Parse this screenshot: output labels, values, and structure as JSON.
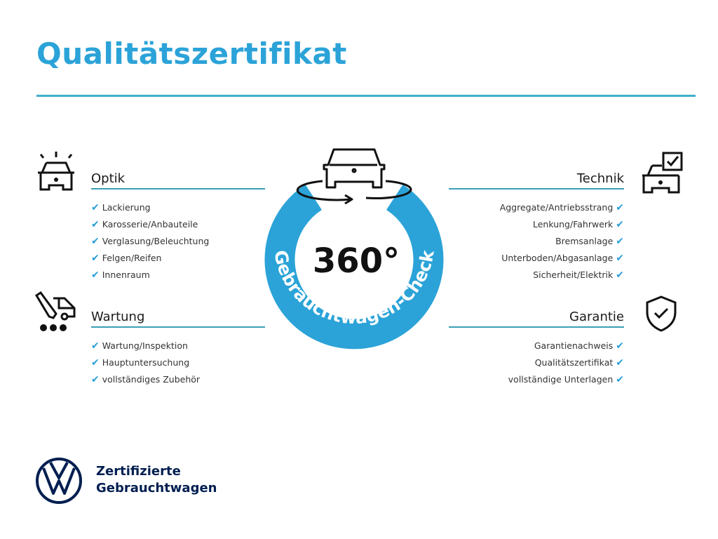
{
  "title": "Qualitätszertifikat",
  "badge": {
    "number": "360°",
    "arc_text": "Gebrauchtwagen-Check"
  },
  "colors": {
    "accent": "#2ba3d8",
    "line": "#3a9fb4",
    "brand": "#001e50"
  },
  "sections": {
    "optik": {
      "icon": "car-lights-icon",
      "heading": "Optik",
      "items": [
        "Lackierung",
        "Karosserie/Anbauteile",
        "Verglasung/Beleuchtung",
        "Felgen/Reifen",
        "Innenraum"
      ]
    },
    "wartung": {
      "icon": "service-van-icon",
      "heading": "Wartung",
      "items": [
        "Wartung/Inspektion",
        "Hauptuntersuchung",
        "vollständiges Zubehör"
      ]
    },
    "technik": {
      "icon": "car-checklist-icon",
      "heading": "Technik",
      "items": [
        "Aggregate/Antriebsstrang",
        "Lenkung/Fahrwerk",
        "Bremsanlage",
        "Unterboden/Abgasanlage",
        "Sicherheit/Elektrik"
      ]
    },
    "garantie": {
      "icon": "shield-check-icon",
      "heading": "Garantie",
      "items": [
        "Garantienachweis",
        "Qualitätszertifikat",
        "vollständige Unterlagen"
      ]
    }
  },
  "check_glyph": "✔",
  "footer": {
    "line1": "Zertifizierte",
    "line2": "Gebrauchtwagen",
    "logo": "vw-logo"
  }
}
